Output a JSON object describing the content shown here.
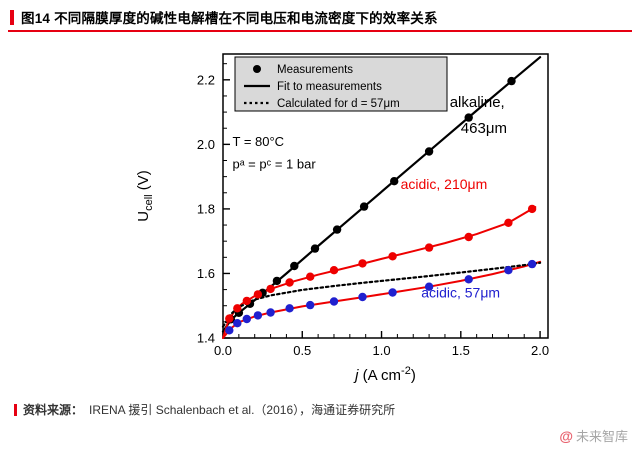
{
  "header": {
    "title": "图14 不同隔膜厚度的碱性电解槽在不同电压和电流密度下的效率关系"
  },
  "footer": {
    "source_label": "资料来源：",
    "source_text": "IRENA 援引 Schalenbach et al.（2016），海通证券研究所",
    "watermark_at": "@",
    "watermark_name": "未来智库"
  },
  "colors": {
    "accent_red": "#e60012",
    "chart_red": "#ee0000",
    "chart_blue": "#2020cf",
    "legend_bg": "#d9d9d9"
  },
  "chart_data": {
    "type": "scatter",
    "title": "",
    "xlabel": {
      "italic": "j",
      "mid": " (A cm",
      "sup": "-2",
      "end": ")"
    },
    "ylabel": {
      "main": "U",
      "sub": "cell",
      "end": " (V)"
    },
    "xlim": [
      0,
      2.05
    ],
    "ylim": [
      1.4,
      2.28
    ],
    "x_tick_values": [
      0,
      0.5,
      1.0,
      1.5,
      2.0
    ],
    "x_tick_labels": [
      "0.0",
      "0.5",
      "1.0",
      "1.5",
      "2.0"
    ],
    "y_tick_values": [
      1.4,
      1.6,
      1.8,
      2.0,
      2.2
    ],
    "y_tick_labels": [
      "1.4",
      "1.6",
      "1.8",
      "2.0",
      "2.2"
    ],
    "x_minor_step": 0.1,
    "y_minor_step": 0.05,
    "grid": false,
    "legend_bg": "#d9d9d9",
    "legend_position": "top-left",
    "legend": [
      {
        "marker": "dot",
        "label": "Measurements"
      },
      {
        "marker": "line",
        "label": "Fit to measurements"
      },
      {
        "marker": "dotted",
        "label": "Calculated for d = 57μm"
      }
    ],
    "series": [
      {
        "name": "fit-alkaline-463um",
        "label": "alkaline 463μm fit",
        "type": "line",
        "color": "#000000",
        "width": 2.2,
        "x": [
          0,
          0.05,
          0.1,
          0.2,
          0.4,
          0.6,
          0.8,
          1.0,
          1.2,
          1.4,
          1.6,
          1.8,
          2.0
        ],
        "y": [
          1.42,
          1.456,
          1.478,
          1.517,
          1.6,
          1.685,
          1.769,
          1.853,
          1.937,
          2.021,
          2.105,
          2.188,
          2.27
        ]
      },
      {
        "name": "fit-acidic-210um",
        "label": "acidic 210μm fit",
        "type": "line",
        "color": "#ee0000",
        "width": 2,
        "x": [
          0,
          0.03,
          0.07,
          0.12,
          0.2,
          0.3,
          0.45,
          0.6,
          0.8,
          1.0,
          1.2,
          1.4,
          1.6,
          1.8,
          1.97
        ],
        "y": [
          1.4,
          1.448,
          1.482,
          1.506,
          1.53,
          1.552,
          1.576,
          1.596,
          1.62,
          1.645,
          1.669,
          1.694,
          1.722,
          1.757,
          1.806
        ]
      },
      {
        "name": "fit-acidic-57um",
        "label": "acidic 57μm fit",
        "type": "line",
        "color": "#ee0000",
        "width": 2,
        "x": [
          0,
          0.05,
          0.1,
          0.2,
          0.3,
          0.5,
          0.7,
          0.9,
          1.1,
          1.3,
          1.5,
          1.7,
          1.9,
          2.0
        ],
        "y": [
          1.4,
          1.43,
          1.449,
          1.467,
          1.479,
          1.498,
          1.513,
          1.528,
          1.543,
          1.559,
          1.577,
          1.598,
          1.622,
          1.636
        ]
      },
      {
        "name": "calculated-d-57um",
        "label": "calculated for d = 57μm",
        "type": "line",
        "color": "#000000",
        "width": 2.2,
        "dash": "2.5 3",
        "x": [
          0,
          0.05,
          0.1,
          0.2,
          0.3,
          0.5,
          0.7,
          0.9,
          1.1,
          1.3,
          1.5,
          1.7,
          1.9,
          2.0
        ],
        "y": [
          1.435,
          1.474,
          1.496,
          1.519,
          1.532,
          1.549,
          1.561,
          1.572,
          1.582,
          1.592,
          1.603,
          1.614,
          1.626,
          1.633
        ]
      },
      {
        "name": "meas-alkaline-463um",
        "label": "alkaline 463μm measurements",
        "type": "scatter",
        "color": "#000000",
        "r": 4.2,
        "x": [
          0.05,
          0.1,
          0.17,
          0.25,
          0.34,
          0.45,
          0.58,
          0.72,
          0.89,
          1.08,
          1.3,
          1.55,
          1.82
        ],
        "y": [
          1.458,
          1.478,
          1.506,
          1.54,
          1.577,
          1.623,
          1.677,
          1.736,
          1.807,
          1.886,
          1.978,
          2.083,
          2.196
        ]
      },
      {
        "name": "meas-acidic-210um",
        "label": "acidic 210μm measurements",
        "type": "scatter",
        "color": "#ee0000",
        "r": 4.2,
        "x": [
          0.04,
          0.09,
          0.15,
          0.22,
          0.3,
          0.42,
          0.55,
          0.7,
          0.88,
          1.07,
          1.3,
          1.55,
          1.8,
          1.95
        ],
        "y": [
          1.46,
          1.492,
          1.515,
          1.535,
          1.552,
          1.572,
          1.59,
          1.61,
          1.631,
          1.653,
          1.68,
          1.713,
          1.757,
          1.8
        ]
      },
      {
        "name": "meas-acidic-57um",
        "label": "acidic 57μm measurements",
        "type": "scatter",
        "color": "#2020cf",
        "r": 4.2,
        "x": [
          0.04,
          0.09,
          0.15,
          0.22,
          0.3,
          0.42,
          0.55,
          0.7,
          0.88,
          1.07,
          1.3,
          1.55,
          1.8,
          1.95
        ],
        "y": [
          1.424,
          1.446,
          1.459,
          1.47,
          1.479,
          1.492,
          1.502,
          1.513,
          1.527,
          1.541,
          1.559,
          1.582,
          1.61,
          1.629
        ]
      }
    ],
    "annotations": [
      {
        "text": "T = 80°C",
        "x": 0.06,
        "y": 1.995,
        "color": "#000000",
        "size": 13,
        "anchor": "start"
      },
      {
        "text": "pᵃ = pᶜ = 1 bar",
        "x": 0.06,
        "y": 1.925,
        "color": "#000000",
        "size": 13,
        "anchor": "start"
      },
      {
        "text": "alkaline,",
        "x": 1.43,
        "y": 2.115,
        "color": "#000000",
        "size": 15,
        "anchor": "start"
      },
      {
        "text": "463μm",
        "x": 1.5,
        "y": 2.035,
        "color": "#000000",
        "size": 15,
        "anchor": "start"
      },
      {
        "text": "acidic, 210μm",
        "x": 1.12,
        "y": 1.862,
        "color": "#ee0000",
        "size": 14,
        "anchor": "start"
      },
      {
        "text": "acidic, 57μm",
        "x": 1.25,
        "y": 1.525,
        "color": "#2020cf",
        "size": 14,
        "anchor": "start"
      }
    ]
  }
}
